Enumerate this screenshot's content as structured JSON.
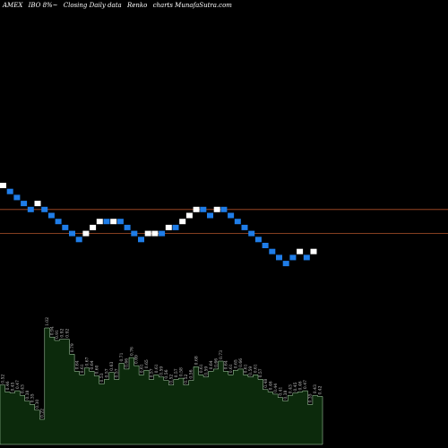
{
  "header": {
    "exchange": "AMEX",
    "symbol": "IBO 8%~",
    "description": "Closing Daily data",
    "chart_kind": "Renko",
    "site": "charts MunafaSutra.com"
  },
  "colors": {
    "background": "#000000",
    "up_brick": "#ffffff",
    "down_brick": "#1f7de8",
    "reference_line": "#b0522a",
    "volume_fill": "#0c2a0c",
    "volume_stroke": "#b7e0b7",
    "volume_label": "#c8c8c8"
  },
  "chart_data": [
    {
      "type": "renko",
      "bricks": [
        {
          "level": 0,
          "dir": "up"
        },
        {
          "level": -1,
          "dir": "down"
        },
        {
          "level": -2,
          "dir": "down"
        },
        {
          "level": -3,
          "dir": "down"
        },
        {
          "level": -4,
          "dir": "down"
        },
        {
          "level": -3,
          "dir": "up"
        },
        {
          "level": -4,
          "dir": "down"
        },
        {
          "level": -5,
          "dir": "down"
        },
        {
          "level": -6,
          "dir": "down"
        },
        {
          "level": -7,
          "dir": "down"
        },
        {
          "level": -8,
          "dir": "down"
        },
        {
          "level": -9,
          "dir": "down"
        },
        {
          "level": -8,
          "dir": "up"
        },
        {
          "level": -7,
          "dir": "up"
        },
        {
          "level": -6,
          "dir": "up"
        },
        {
          "level": -6,
          "dir": "down"
        },
        {
          "level": -6,
          "dir": "up"
        },
        {
          "level": -6,
          "dir": "down"
        },
        {
          "level": -7,
          "dir": "down"
        },
        {
          "level": -8,
          "dir": "down"
        },
        {
          "level": -9,
          "dir": "down"
        },
        {
          "level": -8,
          "dir": "up"
        },
        {
          "level": -8,
          "dir": "up"
        },
        {
          "level": -8,
          "dir": "down"
        },
        {
          "level": -7,
          "dir": "up"
        },
        {
          "level": -7,
          "dir": "down"
        },
        {
          "level": -6,
          "dir": "up"
        },
        {
          "level": -5,
          "dir": "up"
        },
        {
          "level": -4,
          "dir": "up"
        },
        {
          "level": -4,
          "dir": "down"
        },
        {
          "level": -5,
          "dir": "down"
        },
        {
          "level": -4,
          "dir": "up"
        },
        {
          "level": -4,
          "dir": "down"
        },
        {
          "level": -5,
          "dir": "down"
        },
        {
          "level": -6,
          "dir": "down"
        },
        {
          "level": -7,
          "dir": "down"
        },
        {
          "level": -8,
          "dir": "down"
        },
        {
          "level": -9,
          "dir": "down"
        },
        {
          "level": -10,
          "dir": "down"
        },
        {
          "level": -11,
          "dir": "down"
        },
        {
          "level": -12,
          "dir": "down"
        },
        {
          "level": -13,
          "dir": "down"
        },
        {
          "level": -12,
          "dir": "down"
        },
        {
          "level": -11,
          "dir": "up"
        },
        {
          "level": -12,
          "dir": "down"
        },
        {
          "level": -11,
          "dir": "up"
        }
      ],
      "reference_lines": [
        -4,
        -8
      ]
    },
    {
      "type": "area",
      "values": [
        0.52,
        0.46,
        0.45,
        0.47,
        0.43,
        0.38,
        0.35,
        0.3,
        0.22,
        1.02,
        0.94,
        0.91,
        0.92,
        0.92,
        0.79,
        0.64,
        0.61,
        0.67,
        0.64,
        0.6,
        0.53,
        0.57,
        0.63,
        0.57,
        0.71,
        0.66,
        0.76,
        0.69,
        0.61,
        0.65,
        0.57,
        0.61,
        0.59,
        0.56,
        0.52,
        0.57,
        0.58,
        0.52,
        0.56,
        0.68,
        0.61,
        0.59,
        0.64,
        0.66,
        0.73,
        0.64,
        0.61,
        0.65,
        0.66,
        0.61,
        0.59,
        0.61,
        0.57,
        0.48,
        0.46,
        0.44,
        0.41,
        0.38,
        0.43,
        0.45,
        0.46,
        0.47,
        0.35,
        0.43,
        0.42
      ],
      "labels": [
        "0.52",
        "0.46",
        "0.45",
        "0.47",
        "0.43",
        "0.38",
        "0.35",
        "0.30",
        "0.22",
        "1.02",
        "0.94",
        "0.91",
        "0.92",
        "0.92",
        "0.79",
        "0.64",
        "0.61",
        "0.67",
        "0.64",
        "0.60",
        "0.53",
        "0.57",
        "0.63",
        "0.57",
        "0.71",
        "0.66",
        "0.76",
        "0.69",
        "0.61",
        "0.65",
        "0.57",
        "0.61",
        "0.59",
        "0.56",
        "0.52",
        "0.57",
        "0.58",
        "0.52",
        "0.56",
        "0.68",
        "0.61",
        "0.59",
        "0.64",
        "0.66",
        "0.73",
        "0.64",
        "0.61",
        "0.65",
        "0.66",
        "0.61",
        "0.59",
        "0.61",
        "0.57",
        "0.48",
        "0.46",
        "0.44",
        "0.41",
        "0.38",
        "0.43",
        "0.45",
        "0.46",
        "0.47",
        "0.35",
        "0.43",
        "0.42"
      ],
      "ylim": [
        0,
        1.1
      ]
    }
  ]
}
